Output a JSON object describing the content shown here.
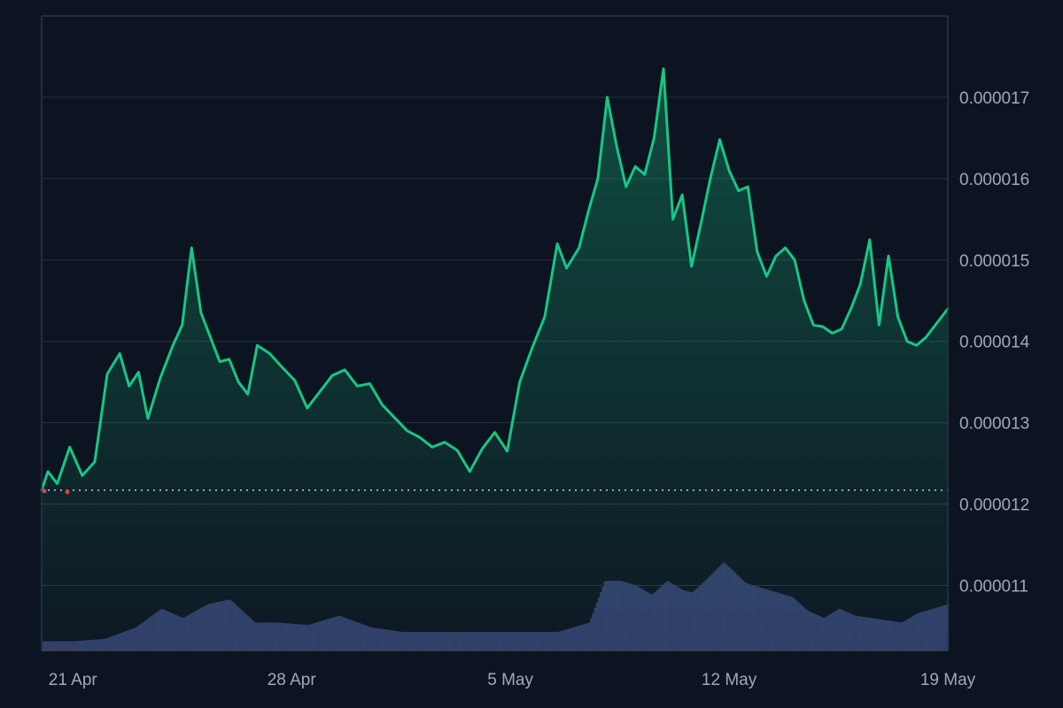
{
  "chart_data": {
    "type": "area",
    "title": "",
    "xlabel": "",
    "ylabel": "",
    "ylim": [
      1.02e-05,
      1.8e-05
    ],
    "yticks": [
      "0.000011",
      "0.000012",
      "0.000013",
      "0.000014",
      "0.000015",
      "0.000016",
      "0.000017"
    ],
    "xticks": [
      {
        "label": "21 Apr",
        "day": 21.5
      },
      {
        "label": "28 Apr",
        "day": 28.5
      },
      {
        "label": "5 May",
        "day": 35.5
      },
      {
        "label": "12 May",
        "day": 42.5
      },
      {
        "label": "19 May",
        "day": 49.5
      }
    ],
    "xlim_day": [
      20.5,
      49.5
    ],
    "baseline_price": 1.217e-05,
    "series": [
      {
        "kind": "price",
        "color": "#16c784",
        "day": [
          20.5,
          20.7,
          21.0,
          21.4,
          21.8,
          22.2,
          22.6,
          23.0,
          23.3,
          23.6,
          23.9,
          24.3,
          24.7,
          25.0,
          25.3,
          25.6,
          25.9,
          26.2,
          26.5,
          26.8,
          27.1,
          27.4,
          27.8,
          28.2,
          28.6,
          29.0,
          29.4,
          29.8,
          30.2,
          30.6,
          31.0,
          31.4,
          31.8,
          32.2,
          32.6,
          33.0,
          33.4,
          33.8,
          34.2,
          34.6,
          35.0,
          35.4,
          35.8,
          36.2,
          36.6,
          37.0,
          37.3,
          37.7,
          38.0,
          38.3,
          38.6,
          38.9,
          39.2,
          39.5,
          39.8,
          40.1,
          40.4,
          40.7,
          41.0,
          41.3,
          41.6,
          41.9,
          42.2,
          42.5,
          42.8,
          43.1,
          43.4,
          43.7,
          44.0,
          44.3,
          44.6,
          44.9,
          45.2,
          45.5,
          45.8,
          46.1,
          46.4,
          46.7,
          47.0,
          47.3,
          47.6,
          47.9,
          48.2,
          48.5,
          48.8,
          49.1,
          49.5
        ],
        "value": [
          1.217e-05,
          1.24e-05,
          1.225e-05,
          1.27e-05,
          1.235e-05,
          1.252e-05,
          1.36e-05,
          1.385e-05,
          1.345e-05,
          1.362e-05,
          1.305e-05,
          1.355e-05,
          1.395e-05,
          1.42e-05,
          1.515e-05,
          1.435e-05,
          1.405e-05,
          1.375e-05,
          1.378e-05,
          1.35e-05,
          1.335e-05,
          1.395e-05,
          1.385e-05,
          1.368e-05,
          1.352e-05,
          1.318e-05,
          1.338e-05,
          1.358e-05,
          1.365e-05,
          1.345e-05,
          1.348e-05,
          1.322e-05,
          1.306e-05,
          1.29e-05,
          1.282e-05,
          1.27e-05,
          1.276e-05,
          1.266e-05,
          1.24e-05,
          1.268e-05,
          1.288e-05,
          1.265e-05,
          1.35e-05,
          1.392e-05,
          1.43e-05,
          1.52e-05,
          1.49e-05,
          1.515e-05,
          1.56e-05,
          1.6e-05,
          1.7e-05,
          1.64e-05,
          1.59e-05,
          1.615e-05,
          1.605e-05,
          1.65e-05,
          1.735e-05,
          1.55e-05,
          1.58e-05,
          1.492e-05,
          1.545e-05,
          1.6e-05,
          1.648e-05,
          1.61e-05,
          1.585e-05,
          1.59e-05,
          1.51e-05,
          1.48e-05,
          1.505e-05,
          1.515e-05,
          1.5e-05,
          1.45e-05,
          1.42e-05,
          1.418e-05,
          1.41e-05,
          1.415e-05,
          1.44e-05,
          1.47e-05,
          1.525e-05,
          1.42e-05,
          1.505e-05,
          1.43e-05,
          1.4e-05,
          1.395e-05,
          1.405e-05,
          1.42e-05,
          1.44e-05
        ]
      },
      {
        "kind": "volume",
        "color": "#323d69",
        "day": [
          20.5,
          21.5,
          22.5,
          23.5,
          24.3,
          25.0,
          25.8,
          26.5,
          27.3,
          28.0,
          29.0,
          30.0,
          31.0,
          32.0,
          33.0,
          34.0,
          35.0,
          36.0,
          37.0,
          38.0,
          38.5,
          39.0,
          39.5,
          40.0,
          40.5,
          41.0,
          41.3,
          41.7,
          42.0,
          42.3,
          42.7,
          43.0,
          43.5,
          44.0,
          44.5,
          45.0,
          45.5,
          46.0,
          46.5,
          47.0,
          47.5,
          48.0,
          48.5,
          49.0,
          49.5
        ],
        "value": [
          4,
          4,
          5,
          10,
          18,
          14,
          20,
          22,
          12,
          12,
          11,
          15,
          10,
          8,
          8,
          8,
          8,
          8,
          8,
          12,
          30,
          30,
          28,
          24,
          30,
          26,
          25,
          30,
          34,
          38,
          33,
          29,
          27,
          25,
          23,
          17,
          14,
          18,
          15,
          14,
          13,
          12,
          16,
          18,
          20
        ]
      }
    ],
    "grid": true,
    "legend": "none",
    "y_axis_position": "right"
  }
}
